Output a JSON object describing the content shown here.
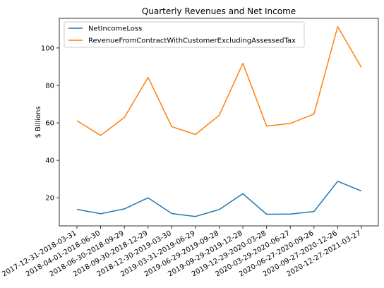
{
  "chart_data": {
    "type": "line",
    "title": "Quarterly Revenues and Net Income",
    "xlabel": "",
    "ylabel": "$ Billions",
    "ylim": [
      5.0,
      115.8
    ],
    "yticks": [
      20,
      40,
      60,
      80,
      100
    ],
    "legend_position": "top-left",
    "grid": false,
    "categories": [
      "2017-12-31-2018-03-31",
      "2018-04-01-2018-06-30",
      "2018-06-30-2018-09-29",
      "2018-09-30-2018-12-29",
      "2018-12-30-2019-03-30",
      "2019-03-31-2019-06-29",
      "2019-06-29-2019-09-28",
      "2019-09-29-2019-12-28",
      "2019-12-29-2020-03-28",
      "2020-03-29-2020-06-27",
      "2020-06-27-2020-09-26",
      "2020-09-27-2020-12-26",
      "2020-12-27-2021-03-27"
    ],
    "series": [
      {
        "name": "NetIncomeLoss",
        "color": "#1f77b4",
        "values": [
          13.8,
          11.5,
          14.1,
          20.0,
          11.6,
          10.0,
          13.7,
          22.2,
          11.2,
          11.3,
          12.7,
          28.8,
          23.6
        ]
      },
      {
        "name": "RevenueFromContractWithCustomerExcludingAssessedTax",
        "color": "#ff7f0e",
        "values": [
          61.1,
          53.3,
          62.9,
          84.3,
          58.0,
          53.8,
          64.0,
          91.8,
          58.3,
          59.7,
          64.7,
          111.4,
          89.6
        ]
      }
    ]
  }
}
